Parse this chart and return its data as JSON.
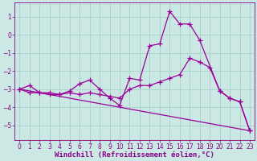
{
  "xlabel": "Windchill (Refroidissement éolien,°C)",
  "bg_color": "#cce8e4",
  "grid_color": "#aad4cc",
  "line_color": "#990099",
  "xlim": [
    -0.5,
    23.5
  ],
  "ylim": [
    -5.8,
    1.8
  ],
  "xticks": [
    0,
    1,
    2,
    3,
    4,
    5,
    6,
    7,
    8,
    9,
    10,
    11,
    12,
    13,
    14,
    15,
    16,
    17,
    18,
    19,
    20,
    21,
    22,
    23
  ],
  "yticks": [
    -5,
    -4,
    -3,
    -2,
    -1,
    0,
    1
  ],
  "series": [
    {
      "x": [
        0,
        1,
        2,
        3,
        4,
        5,
        6,
        7,
        8,
        9,
        10,
        11,
        12,
        13,
        14,
        15,
        16,
        17,
        18,
        20,
        21,
        22,
        23
      ],
      "y": [
        -3.0,
        -2.8,
        -3.2,
        -3.3,
        -3.3,
        -3.1,
        -2.7,
        -2.5,
        -3.0,
        -3.5,
        -3.9,
        -2.4,
        -2.5,
        -0.6,
        -0.5,
        1.3,
        0.6,
        0.6,
        -0.3,
        -3.1,
        -3.5,
        -3.7,
        -5.3
      ]
    },
    {
      "x": [
        0,
        23
      ],
      "y": [
        -3.0,
        -5.3
      ]
    },
    {
      "x": [
        0,
        1,
        2,
        3,
        4,
        5,
        6,
        7,
        8,
        9,
        10,
        11,
        12,
        13,
        14,
        15,
        16,
        17,
        18,
        19,
        20,
        21,
        22,
        23
      ],
      "y": [
        -3.0,
        -3.2,
        -3.2,
        -3.2,
        -3.3,
        -3.2,
        -3.3,
        -3.2,
        -3.3,
        -3.4,
        -3.5,
        -3.0,
        -2.8,
        -2.8,
        -2.6,
        -2.4,
        -2.2,
        -1.3,
        -1.5,
        -1.8,
        -3.1,
        -3.5,
        -3.7,
        -5.3
      ]
    }
  ],
  "marker": "+",
  "markersize": 4,
  "linewidth": 0.9,
  "font_color": "#880088",
  "axis_label_fontsize": 6.5,
  "tick_fontsize": 5.5
}
